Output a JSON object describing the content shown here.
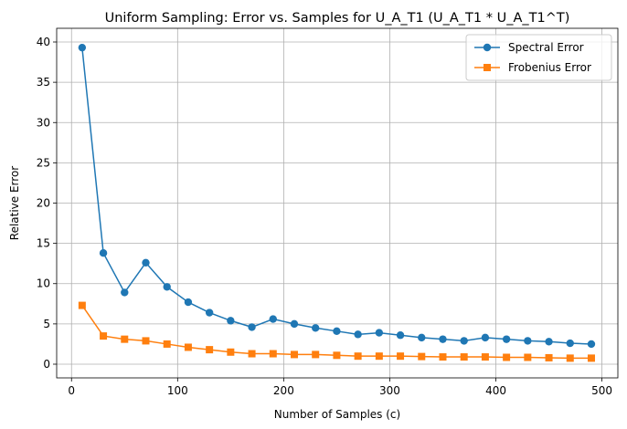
{
  "chart_data": {
    "type": "line",
    "title": "Uniform Sampling: Error vs. Samples for U_A_T1 (U_A_T1 * U_A_T1^T)",
    "xlabel": "Number of Samples (c)",
    "ylabel": "Relative Error",
    "xlim": [
      -14,
      515
    ],
    "ylim": [
      -1.7,
      41.7
    ],
    "xticks": [
      0,
      100,
      200,
      300,
      400,
      500
    ],
    "yticks": [
      0,
      5,
      10,
      15,
      20,
      25,
      30,
      35,
      40
    ],
    "grid": true,
    "legend_position": "top-right",
    "x": [
      10,
      30,
      50,
      70,
      90,
      110,
      130,
      150,
      170,
      190,
      210,
      230,
      250,
      270,
      290,
      310,
      330,
      350,
      370,
      390,
      410,
      430,
      450,
      470,
      490
    ],
    "series": [
      {
        "name": "Spectral Error",
        "color": "#1f77b4",
        "marker": "circle",
        "values": [
          39.3,
          13.8,
          8.9,
          12.6,
          9.6,
          7.7,
          6.4,
          5.4,
          4.6,
          5.6,
          5.0,
          4.5,
          4.1,
          3.7,
          3.9,
          3.6,
          3.3,
          3.1,
          2.9,
          3.3,
          3.1,
          2.9,
          2.8,
          2.6,
          2.5
        ]
      },
      {
        "name": "Frobenius Error",
        "color": "#ff7f0e",
        "marker": "square",
        "values": [
          7.3,
          3.5,
          3.1,
          2.9,
          2.5,
          2.1,
          1.8,
          1.5,
          1.3,
          1.3,
          1.2,
          1.2,
          1.1,
          1.0,
          1.0,
          1.0,
          0.95,
          0.9,
          0.9,
          0.9,
          0.85,
          0.85,
          0.8,
          0.75,
          0.75
        ]
      }
    ]
  }
}
